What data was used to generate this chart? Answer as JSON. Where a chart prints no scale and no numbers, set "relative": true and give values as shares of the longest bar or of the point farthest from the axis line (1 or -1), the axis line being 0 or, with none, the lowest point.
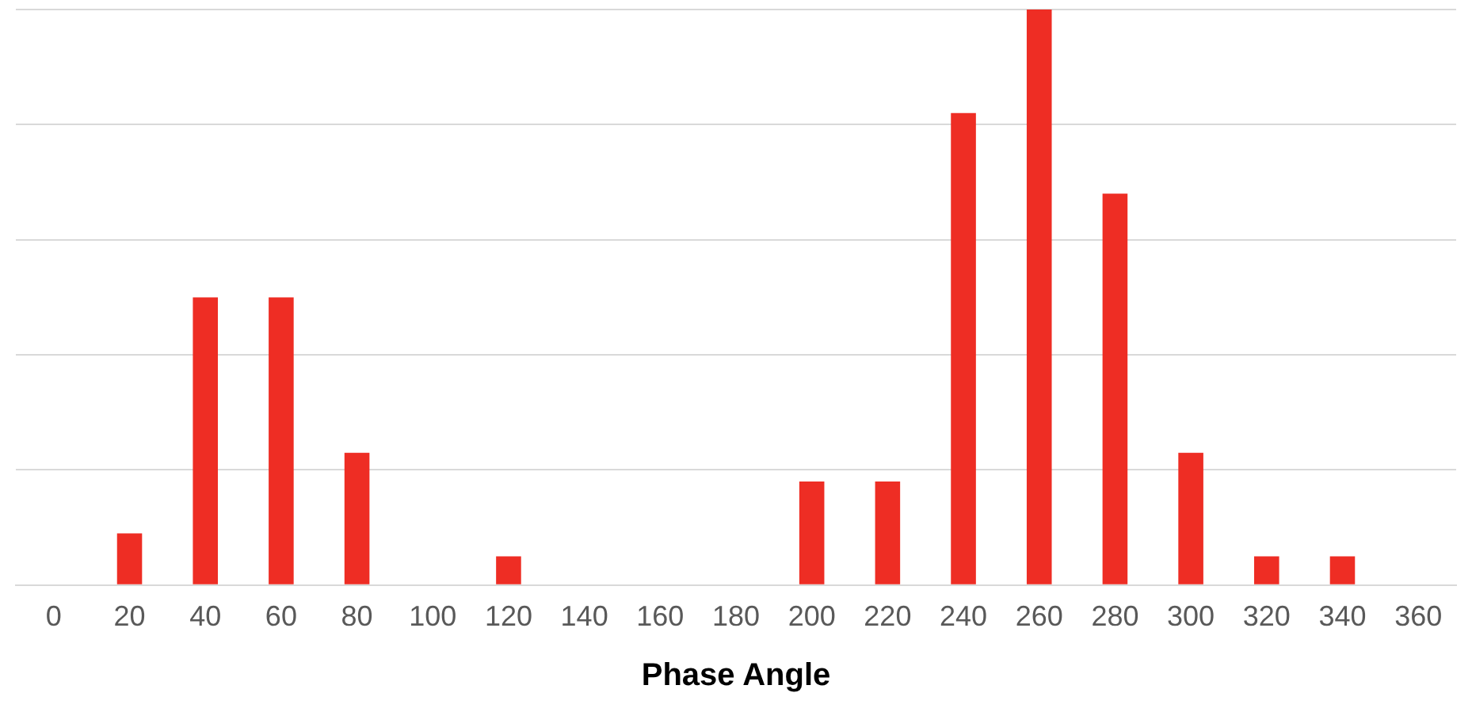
{
  "chart_data": {
    "type": "bar",
    "xlabel": "Phase Angle",
    "relative": true,
    "grid": "y",
    "categories": [
      "0",
      "20",
      "40",
      "60",
      "80",
      "100",
      "120",
      "140",
      "160",
      "180",
      "200",
      "220",
      "240",
      "260",
      "280",
      "300",
      "320",
      "340",
      "360"
    ],
    "values": [
      0,
      0.09,
      0.5,
      0.5,
      0.23,
      0,
      0.05,
      0,
      0,
      0,
      0.18,
      0.18,
      0.82,
      1,
      0.68,
      0.23,
      0.05,
      0.05,
      0
    ],
    "color": "#ee2d24"
  }
}
